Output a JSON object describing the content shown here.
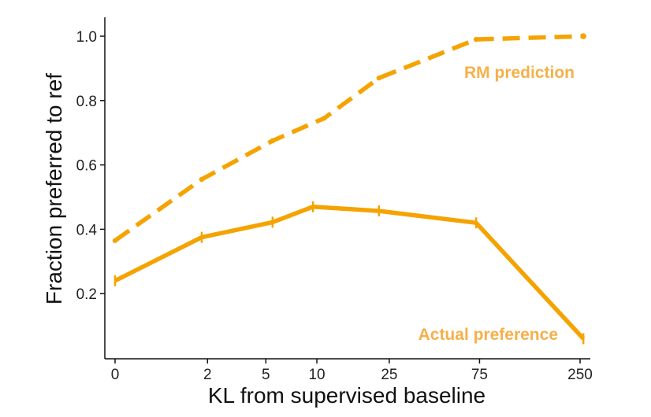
{
  "chart_data": {
    "type": "line",
    "xlabel": "KL from supervised baseline",
    "ylabel": "Fraction preferred to ref",
    "x_ticks": [
      "0",
      "2",
      "5",
      "10",
      "25",
      "75",
      "250"
    ],
    "y_ticks": [
      "0.2",
      "0.4",
      "0.6",
      "0.8",
      "1.0"
    ],
    "ylim": [
      0.0,
      1.05
    ],
    "x_scale": "log(1+x)",
    "grid": false,
    "legend": "inline labels",
    "color": "#f5a300",
    "label_color": "#f5b04a",
    "series": [
      {
        "name": "RM prediction",
        "style": "dashed",
        "x": [
          0,
          1.8,
          5.5,
          11,
          22,
          72,
          260
        ],
        "y": [
          0.365,
          0.555,
          0.675,
          0.745,
          0.87,
          0.99,
          1.0
        ]
      },
      {
        "name": "Actual preference",
        "style": "solid",
        "x": [
          0,
          1.8,
          5.5,
          9.5,
          22,
          72,
          260
        ],
        "y": [
          0.24,
          0.375,
          0.422,
          0.47,
          0.457,
          0.42,
          0.06
        ]
      }
    ]
  }
}
